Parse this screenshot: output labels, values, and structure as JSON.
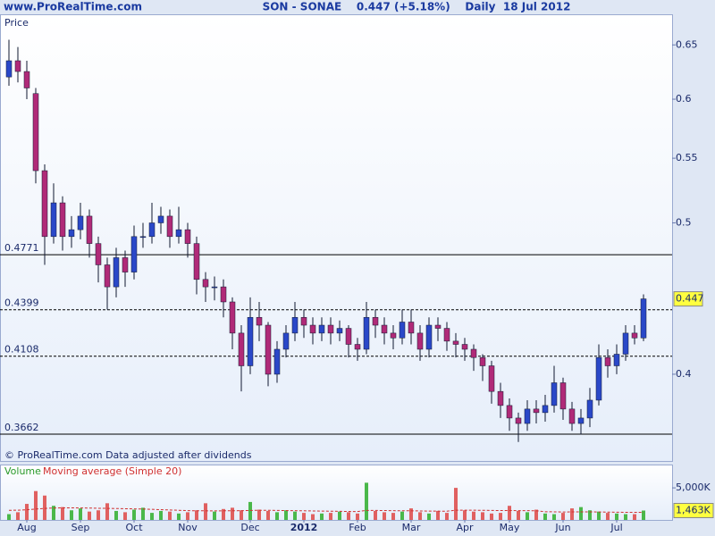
{
  "chart_data": {
    "type": "candlestick",
    "site": "www.ProRealTime.com",
    "title": "SON - SONAE    0.447 (+5.18%)    Daily  18 Jul 2012",
    "price_label": "Price",
    "footnote": "© ProRealTime.com  Data adjusted after dividends",
    "volume_label": "Volume",
    "ma_label": "Moving average (Simple 20)",
    "log_scale": true,
    "up_color": "#2a48c8",
    "down_color": "#b02a78",
    "wick_color": "#101830",
    "categories": [
      null,
      null,
      "Aug",
      null,
      null,
      null,
      null,
      null,
      "Sep",
      null,
      null,
      null,
      null,
      null,
      "Oct",
      null,
      null,
      null,
      null,
      null,
      "Nov",
      null,
      null,
      null,
      null,
      null,
      null,
      "Dec",
      null,
      null,
      null,
      null,
      null,
      "2012",
      null,
      null,
      null,
      null,
      null,
      "Feb",
      null,
      null,
      null,
      null,
      null,
      "Mar",
      null,
      null,
      null,
      null,
      null,
      "Apr",
      null,
      null,
      null,
      null,
      "May",
      null,
      null,
      null,
      null,
      null,
      "Jun",
      null,
      null,
      null,
      null,
      null,
      "Jul",
      null,
      null,
      null
    ],
    "open": [
      0.62,
      0.635,
      0.625,
      0.605,
      0.54,
      0.49,
      0.515,
      0.49,
      0.495,
      0.505,
      0.485,
      0.47,
      0.455,
      0.475,
      0.465,
      0.49,
      0.49,
      0.5,
      0.505,
      0.49,
      0.495,
      0.485,
      0.46,
      0.455,
      0.455,
      0.445,
      0.425,
      0.405,
      0.435,
      0.43,
      0.4,
      0.415,
      0.425,
      0.435,
      0.43,
      0.425,
      0.43,
      0.425,
      0.428,
      0.418,
      0.415,
      0.435,
      0.43,
      0.425,
      0.422,
      0.432,
      0.425,
      0.415,
      0.43,
      0.428,
      0.42,
      0.418,
      0.415,
      0.41,
      0.405,
      0.39,
      0.382,
      0.375,
      0.372,
      0.38,
      0.378,
      0.382,
      0.395,
      0.38,
      0.372,
      0.375,
      0.385,
      0.41,
      0.405,
      0.412,
      0.425,
      0.422
    ],
    "high": [
      0.655,
      0.648,
      0.635,
      0.61,
      0.545,
      0.53,
      0.52,
      0.505,
      0.515,
      0.51,
      0.49,
      0.475,
      0.482,
      0.48,
      0.498,
      0.5,
      0.515,
      0.512,
      0.51,
      0.512,
      0.5,
      0.49,
      0.465,
      0.462,
      0.46,
      0.448,
      0.43,
      0.448,
      0.445,
      0.432,
      0.42,
      0.43,
      0.445,
      0.44,
      0.435,
      0.435,
      0.435,
      0.433,
      0.43,
      0.422,
      0.445,
      0.44,
      0.435,
      0.43,
      0.44,
      0.44,
      0.43,
      0.435,
      0.435,
      0.432,
      0.425,
      0.422,
      0.418,
      0.412,
      0.408,
      0.395,
      0.386,
      0.378,
      0.385,
      0.385,
      0.388,
      0.405,
      0.398,
      0.384,
      0.38,
      0.392,
      0.418,
      0.415,
      0.418,
      0.43,
      0.43,
      0.45
    ],
    "low": [
      0.612,
      0.615,
      0.6,
      0.53,
      0.47,
      0.485,
      0.48,
      0.482,
      0.488,
      0.475,
      0.458,
      0.44,
      0.448,
      0.455,
      0.46,
      0.482,
      0.485,
      0.492,
      0.482,
      0.485,
      0.475,
      0.45,
      0.445,
      0.446,
      0.435,
      0.415,
      0.39,
      0.4,
      0.42,
      0.393,
      0.395,
      0.41,
      0.42,
      0.422,
      0.418,
      0.42,
      0.418,
      0.42,
      0.41,
      0.408,
      0.412,
      0.422,
      0.418,
      0.415,
      0.418,
      0.418,
      0.408,
      0.41,
      0.42,
      0.414,
      0.41,
      0.408,
      0.402,
      0.396,
      0.383,
      0.375,
      0.368,
      0.362,
      0.368,
      0.372,
      0.373,
      0.378,
      0.374,
      0.368,
      0.366,
      0.37,
      0.382,
      0.398,
      0.4,
      0.408,
      0.418,
      0.42
    ],
    "close": [
      0.635,
      0.625,
      0.61,
      0.54,
      0.49,
      0.515,
      0.49,
      0.495,
      0.505,
      0.485,
      0.47,
      0.455,
      0.475,
      0.465,
      0.49,
      0.49,
      0.5,
      0.505,
      0.49,
      0.495,
      0.485,
      0.46,
      0.455,
      0.455,
      0.445,
      0.425,
      0.405,
      0.435,
      0.43,
      0.4,
      0.415,
      0.425,
      0.435,
      0.43,
      0.425,
      0.43,
      0.425,
      0.428,
      0.418,
      0.415,
      0.435,
      0.43,
      0.425,
      0.422,
      0.432,
      0.425,
      0.415,
      0.43,
      0.428,
      0.42,
      0.418,
      0.415,
      0.41,
      0.405,
      0.39,
      0.382,
      0.375,
      0.372,
      0.38,
      0.378,
      0.382,
      0.395,
      0.38,
      0.372,
      0.375,
      0.385,
      0.41,
      0.405,
      0.412,
      0.425,
      0.422,
      0.447
    ],
    "ylim": [
      0.352,
      0.68
    ],
    "yticks": [
      0.4,
      0.5,
      0.55,
      0.6,
      0.65
    ],
    "levels": [
      {
        "value": 0.4771,
        "style": "solid"
      },
      {
        "value": 0.4399,
        "style": "dashed"
      },
      {
        "value": 0.4108,
        "style": "dashed"
      },
      {
        "value": 0.3662,
        "style": "solid"
      }
    ],
    "last_price": 0.447,
    "volume": [
      900,
      1200,
      2500,
      4500,
      3800,
      2200,
      2000,
      1500,
      1800,
      1300,
      1500,
      2600,
      1400,
      1200,
      1600,
      1900,
      1100,
      1400,
      1300,
      1000,
      1200,
      1500,
      2600,
      1300,
      1700,
      1900,
      1500,
      2800,
      1600,
      1400,
      1200,
      1500,
      1300,
      1100,
      900,
      1000,
      1100,
      1300,
      1200,
      1000,
      5800,
      1400,
      1200,
      1100,
      1300,
      1800,
      1200,
      1000,
      1400,
      1100,
      5000,
      1500,
      1300,
      1200,
      1000,
      1100,
      2200,
      1400,
      1200,
      1600,
      1000,
      900,
      1100,
      1800,
      2000,
      1500,
      1300,
      1100,
      1000,
      900,
      900,
      1463
    ],
    "volume_ma": [
      1500,
      1520,
      1580,
      1700,
      1800,
      1850,
      1880,
      1880,
      1870,
      1850,
      1820,
      1800,
      1780,
      1750,
      1720,
      1700,
      1650,
      1600,
      1550,
      1500,
      1450,
      1420,
      1420,
      1410,
      1420,
      1430,
      1440,
      1480,
      1500,
      1500,
      1480,
      1460,
      1440,
      1420,
      1400,
      1380,
      1360,
      1340,
      1320,
      1300,
      1480,
      1480,
      1460,
      1440,
      1420,
      1420,
      1400,
      1380,
      1370,
      1360,
      1520,
      1520,
      1510,
      1500,
      1480,
      1460,
      1460,
      1450,
      1440,
      1430,
      1280,
      1260,
      1240,
      1250,
      1260,
      1260,
      1240,
      1220,
      1200,
      1190,
      1180,
      1180
    ],
    "volume_ylim": [
      0,
      8500
    ],
    "volume_yticks": [
      {
        "value": 5000,
        "label": "5,000K"
      }
    ],
    "last_volume": {
      "value": 1463,
      "label": "1,463K"
    }
  }
}
